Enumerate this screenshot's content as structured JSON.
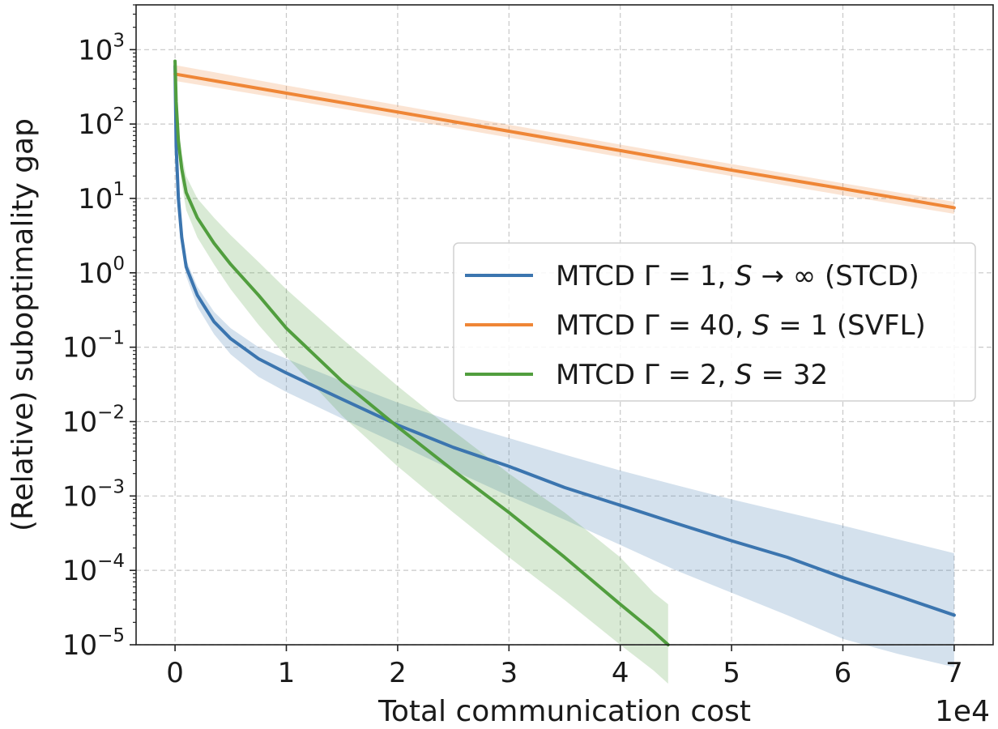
{
  "chart_data": {
    "type": "line",
    "title": "",
    "xlabel": "Total communication cost",
    "ylabel": "(Relative) suboptimality gap",
    "x_scale_label": "1e4",
    "yscale": "log",
    "xlim": [
      -0.35,
      7.35
    ],
    "ylim": [
      1e-05,
      4000
    ],
    "xticks": [
      0,
      1,
      2,
      3,
      4,
      5,
      6,
      7
    ],
    "xtick_labels": [
      "0",
      "1",
      "2",
      "3",
      "4",
      "5",
      "6",
      "7"
    ],
    "yticks": [
      {
        "base": "10",
        "exp": "3",
        "value": 1000
      },
      {
        "base": "10",
        "exp": "2",
        "value": 100
      },
      {
        "base": "10",
        "exp": "1",
        "value": 10
      },
      {
        "base": "10",
        "exp": "0",
        "value": 1
      },
      {
        "base": "10",
        "exp": "−1",
        "value": 0.1
      },
      {
        "base": "10",
        "exp": "−2",
        "value": 0.01
      },
      {
        "base": "10",
        "exp": "−3",
        "value": 0.001
      },
      {
        "base": "10",
        "exp": "−4",
        "value": 0.0001
      },
      {
        "base": "10",
        "exp": "−5",
        "value": 1e-05
      }
    ],
    "grid": true,
    "legend_position": "center-right",
    "series": [
      {
        "name": "MTCD Γ = 1, S → ∞ (STCD)",
        "legend_parts": [
          "MTCD Γ = 1, ",
          "S",
          " → ∞ (STCD)"
        ],
        "color": "#3b75af",
        "x": [
          0,
          0.01,
          0.03,
          0.06,
          0.1,
          0.2,
          0.35,
          0.5,
          0.75,
          1.0,
          1.5,
          2.0,
          2.5,
          3.0,
          3.5,
          4.0,
          4.5,
          5.0,
          5.5,
          6.0,
          6.5,
          7.0
        ],
        "y": [
          600,
          50,
          10,
          3,
          1.2,
          0.5,
          0.22,
          0.13,
          0.07,
          0.045,
          0.02,
          0.009,
          0.0045,
          0.0025,
          0.0013,
          0.00075,
          0.00043,
          0.00025,
          0.00015,
          8e-05,
          4.5e-05,
          2.5e-05
        ],
        "lower": [
          550,
          40,
          8,
          2.3,
          0.9,
          0.35,
          0.15,
          0.08,
          0.04,
          0.025,
          0.011,
          0.005,
          0.0022,
          0.001,
          0.00048,
          0.00022,
          0.0001,
          5e-05,
          2.5e-05,
          1.2e-05,
          7.5e-06,
          5e-06
        ],
        "upper": [
          650,
          60,
          12.5,
          3.8,
          1.5,
          0.65,
          0.3,
          0.18,
          0.1,
          0.07,
          0.035,
          0.018,
          0.01,
          0.006,
          0.0036,
          0.0022,
          0.0014,
          0.0009,
          0.0006,
          0.0004,
          0.00026,
          0.00017
        ]
      },
      {
        "name": "MTCD Γ = 40, S = 1 (SVFL)",
        "legend_parts": [
          "MTCD Γ = 40, ",
          "S",
          " = 1 (SVFL)"
        ],
        "color": "#ef8636",
        "x": [
          0,
          1,
          2,
          3,
          4,
          5,
          6,
          7
        ],
        "y": [
          470,
          260,
          145,
          80,
          44,
          24,
          13.5,
          7.5
        ],
        "lower": [
          380,
          215,
          120,
          66,
          36,
          20,
          11,
          6.2
        ],
        "upper": [
          620,
          330,
          180,
          98,
          53,
          29,
          16,
          9.0
        ]
      },
      {
        "name": "MTCD Γ = 2, S = 32",
        "legend_parts": [
          "MTCD Γ = 2, ",
          "S",
          " = 32"
        ],
        "color": "#519e3e",
        "x": [
          0,
          0.01,
          0.03,
          0.06,
          0.1,
          0.2,
          0.35,
          0.5,
          0.75,
          1.0,
          1.5,
          2.0,
          2.5,
          3.0,
          3.5,
          4.0,
          4.3,
          4.43
        ],
        "y": [
          700,
          200,
          60,
          25,
          12,
          5.5,
          2.5,
          1.3,
          0.5,
          0.18,
          0.035,
          0.0085,
          0.0022,
          0.0006,
          0.00015,
          3.5e-05,
          1.5e-05,
          1e-05
        ],
        "lower": [
          650,
          150,
          40,
          16,
          7,
          3,
          1.3,
          0.6,
          0.2,
          0.075,
          0.012,
          0.0025,
          0.0006,
          0.00015,
          4e-05,
          1e-05,
          4.5e-06,
          3e-06
        ],
        "upper": [
          750,
          280,
          95,
          40,
          20,
          10,
          5.5,
          3.2,
          1.4,
          0.6,
          0.13,
          0.03,
          0.0075,
          0.002,
          0.0006,
          0.00015,
          5e-05,
          3.5e-05
        ]
      }
    ]
  }
}
